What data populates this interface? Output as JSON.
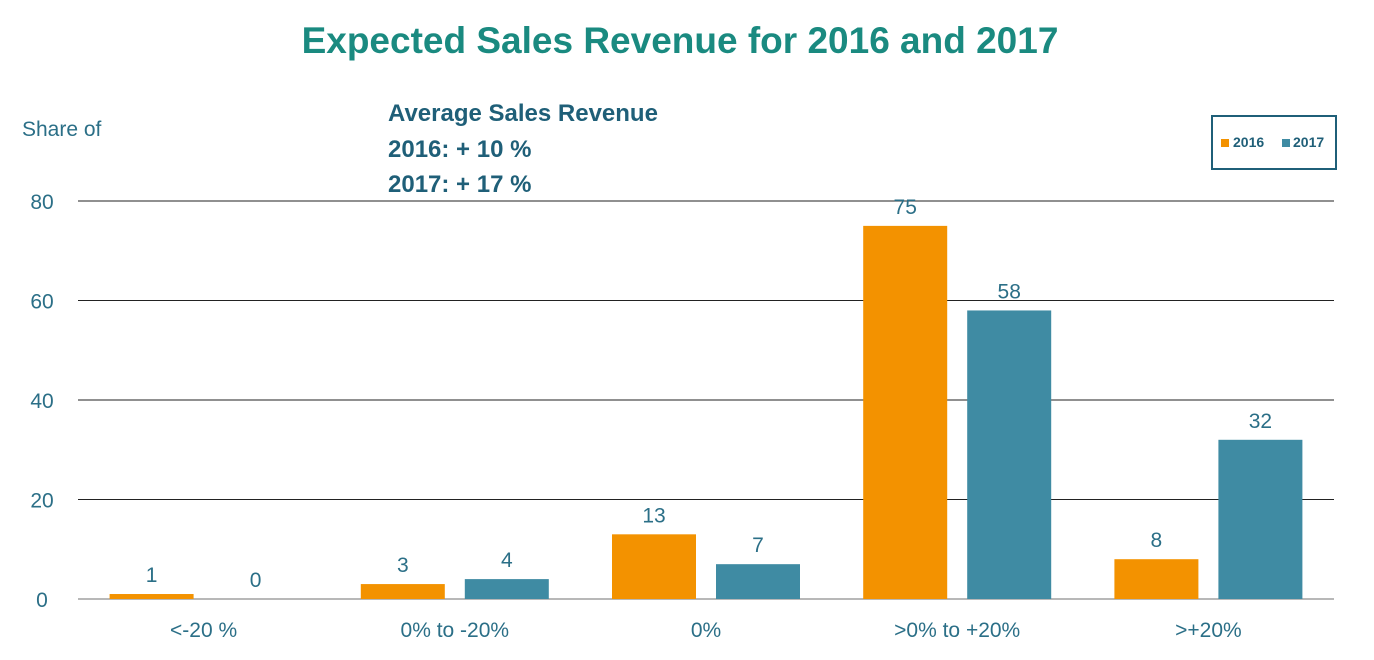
{
  "chart_data": {
    "type": "bar",
    "title": "Expected Sales Revenue for 2016 and 2017",
    "ylabel": "Share of",
    "xlabel": "",
    "annotation": {
      "line1": "Average Sales Revenue",
      "line2": "2016: + 10 %",
      "line3": "2017: + 17 %"
    },
    "categories": [
      "<-20 %",
      "0% to -20%",
      "0%",
      ">0% to +20%",
      ">+20%"
    ],
    "series": [
      {
        "name": "2016",
        "color": "#f39200",
        "values": [
          1,
          3,
          13,
          75,
          8
        ]
      },
      {
        "name": "2017",
        "color": "#3f8ba3",
        "values": [
          0,
          4,
          7,
          58,
          32
        ]
      }
    ],
    "ylim": [
      0,
      80
    ],
    "yticks": [
      0,
      20,
      40,
      60,
      80
    ],
    "grid": true,
    "legend_position": "top-right"
  }
}
